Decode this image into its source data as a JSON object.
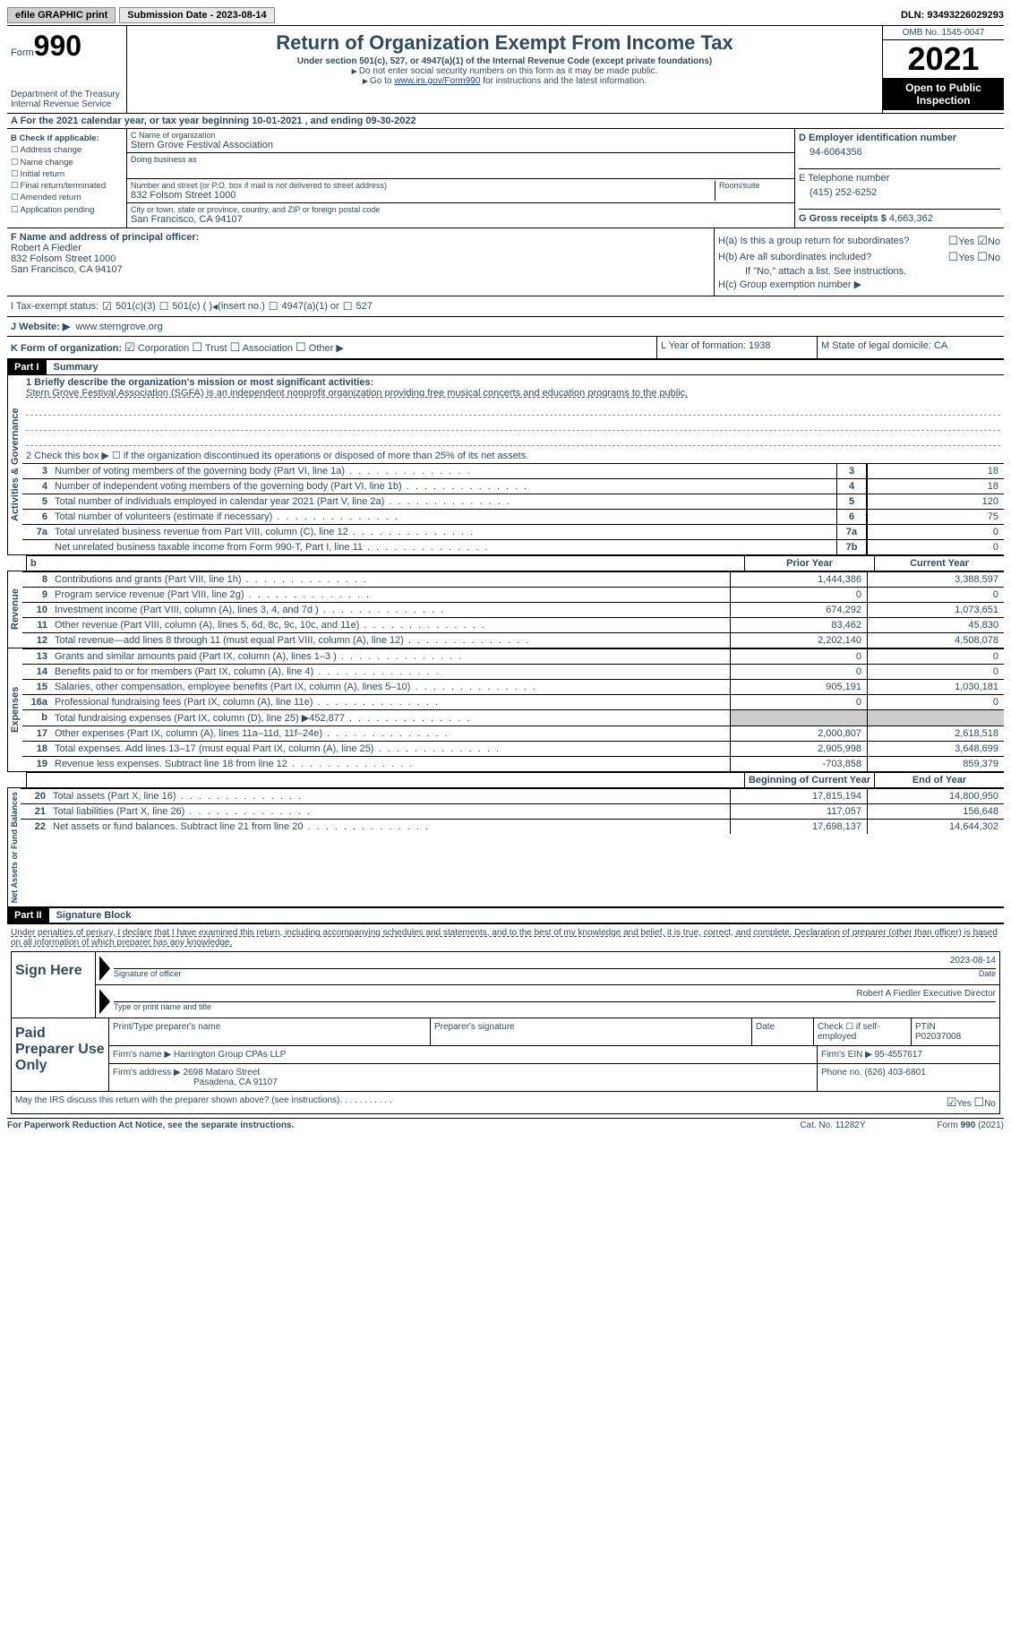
{
  "topbar": {
    "efile": "efile GRAPHIC print",
    "submission": "Submission Date - 2023-08-14",
    "dln": "DLN: 93493226029293"
  },
  "header": {
    "form_label": "Form",
    "form_number": "990",
    "dept": "Department of the Treasury\nInternal Revenue Service",
    "title": "Return of Organization Exempt From Income Tax",
    "subtitle": "Under section 501(c), 527, or 4947(a)(1) of the Internal Revenue Code (except private foundations)",
    "warn1": "Do not enter social security numbers on this form as it may be made public.",
    "warn2_pre": "Go to ",
    "warn2_link": "www.irs.gov/Form990",
    "warn2_post": " for instructions and the latest information.",
    "omb": "OMB No. 1545-0047",
    "year": "2021",
    "inspect": "Open to Public Inspection"
  },
  "row_a": "A For the 2021 calendar year, or tax year beginning 10-01-2021    , and ending 09-30-2022",
  "col_b": {
    "title": "B Check if applicable:",
    "items": [
      "Address change",
      "Name change",
      "Initial return",
      "Final return/terminated",
      "Amended return",
      "Application pending"
    ]
  },
  "col_c": {
    "name_lbl": "C Name of organization",
    "name": "Stern Grove Festival Association",
    "dba_lbl": "Doing business as",
    "addr_lbl": "Number and street (or P.O. box if mail is not delivered to street address)",
    "room_lbl": "Room/suite",
    "addr": "832 Folsom Street 1000",
    "city_lbl": "City or town, state or province, country, and ZIP or foreign postal code",
    "city": "San Francisco, CA  94107"
  },
  "col_d": {
    "ein_lbl": "D Employer identification number",
    "ein": "94-6064356",
    "tel_lbl": "E Telephone number",
    "tel": "(415) 252-6252",
    "gross_lbl": "G Gross receipts $",
    "gross": "4,663,362"
  },
  "col_f": {
    "lbl": "F Name and address of principal officer:",
    "name": "Robert A Fiedler",
    "addr1": "832 Folsom Street 1000",
    "addr2": "San Francisco, CA  94107"
  },
  "col_h": {
    "ha": "H(a)  Is this a group return for subordinates?",
    "hb": "H(b)  Are all subordinates included?",
    "note": "If \"No,\" attach a list. See instructions.",
    "hc": "H(c)  Group exemption number ▶"
  },
  "row_i": {
    "lbl": "I   Tax-exempt status:",
    "opts": [
      "501(c)(3)",
      "501(c) (  ) ",
      "(insert no.)",
      "4947(a)(1) or",
      "527"
    ]
  },
  "row_j": {
    "lbl": "J   Website: ▶",
    "val": "www.sterngrove.org"
  },
  "row_k": {
    "lbl": "K Form of organization:",
    "opts": [
      "Corporation",
      "Trust",
      "Association",
      "Other ▶"
    ]
  },
  "row_l": "L Year of formation: 1938",
  "row_m": "M State of legal domicile: CA",
  "part1": {
    "hdr": "Part I",
    "title": "Summary"
  },
  "summary": {
    "q1_lbl": "1   Briefly describe the organization's mission or most significant activities:",
    "q1_val": "Stern Grove Festival Association (SGFA) is an independent nonprofit organization providing free musical concerts and education programs to the public.",
    "q2": "2    Check this box ▶ ☐  if the organization discontinued its operations or disposed of more than 25% of its net assets.",
    "rows_a": [
      {
        "n": "3",
        "t": "Number of voting members of the governing body (Part VI, line 1a)",
        "nb": "3",
        "v": "18"
      },
      {
        "n": "4",
        "t": "Number of independent voting members of the governing body (Part VI, line 1b)",
        "nb": "4",
        "v": "18"
      },
      {
        "n": "5",
        "t": "Total number of individuals employed in calendar year 2021 (Part V, line 2a)",
        "nb": "5",
        "v": "120"
      },
      {
        "n": "6",
        "t": "Total number of volunteers (estimate if necessary)",
        "nb": "6",
        "v": "75"
      },
      {
        "n": "7a",
        "t": "Total unrelated business revenue from Part VIII, column (C), line 12",
        "nb": "7a",
        "v": "0"
      },
      {
        "n": "",
        "t": "Net unrelated business taxable income from Form 990-T, Part I, line 11",
        "nb": "7b",
        "v": "0"
      }
    ],
    "colhdr": {
      "b": "b",
      "py": "Prior Year",
      "cy": "Current Year"
    },
    "rows_r": [
      {
        "n": "8",
        "t": "Contributions and grants (Part VIII, line 1h)",
        "py": "1,444,386",
        "cy": "3,388,597"
      },
      {
        "n": "9",
        "t": "Program service revenue (Part VIII, line 2g)",
        "py": "0",
        "cy": "0"
      },
      {
        "n": "10",
        "t": "Investment income (Part VIII, column (A), lines 3, 4, and 7d )",
        "py": "674,292",
        "cy": "1,073,651"
      },
      {
        "n": "11",
        "t": "Other revenue (Part VIII, column (A), lines 5, 6d, 8c, 9c, 10c, and 11e)",
        "py": "83,462",
        "cy": "45,830"
      },
      {
        "n": "12",
        "t": "Total revenue—add lines 8 through 11 (must equal Part VIII, column (A), line 12)",
        "py": "2,202,140",
        "cy": "4,508,078"
      }
    ],
    "rows_e": [
      {
        "n": "13",
        "t": "Grants and similar amounts paid (Part IX, column (A), lines 1–3 )",
        "py": "0",
        "cy": "0"
      },
      {
        "n": "14",
        "t": "Benefits paid to or for members (Part IX, column (A), line 4)",
        "py": "0",
        "cy": "0"
      },
      {
        "n": "15",
        "t": "Salaries, other compensation, employee benefits (Part IX, column (A), lines 5–10)",
        "py": "905,191",
        "cy": "1,030,181"
      },
      {
        "n": "16a",
        "t": "Professional fundraising fees (Part IX, column (A), line 11e)",
        "py": "0",
        "cy": "0"
      },
      {
        "n": "b",
        "t": "Total fundraising expenses (Part IX, column (D), line 25) ▶452,877",
        "py": "grey",
        "cy": "grey"
      },
      {
        "n": "17",
        "t": "Other expenses (Part IX, column (A), lines 11a–11d, 11f–24e)",
        "py": "2,000,807",
        "cy": "2,618,518"
      },
      {
        "n": "18",
        "t": "Total expenses. Add lines 13–17 (must equal Part IX, column (A), line 25)",
        "py": "2,905,998",
        "cy": "3,648,699"
      },
      {
        "n": "19",
        "t": "Revenue less expenses. Subtract line 18 from line 12",
        "py": "-703,858",
        "cy": "859,379"
      }
    ],
    "colhdr2": {
      "py": "Beginning of Current Year",
      "cy": "End of Year"
    },
    "rows_n": [
      {
        "n": "20",
        "t": "Total assets (Part X, line 16)",
        "py": "17,815,194",
        "cy": "14,800,950"
      },
      {
        "n": "21",
        "t": "Total liabilities (Part X, line 26)",
        "py": "117,057",
        "cy": "156,648"
      },
      {
        "n": "22",
        "t": "Net assets or fund balances. Subtract line 21 from line 20",
        "py": "17,698,137",
        "cy": "14,644,302"
      }
    ],
    "vlabels": {
      "a": "Activities & Governance",
      "r": "Revenue",
      "e": "Expenses",
      "n": "Net Assets or Fund Balances"
    }
  },
  "part2": {
    "hdr": "Part II",
    "title": "Signature Block"
  },
  "sig": {
    "decl": "Under penalties of perjury, I declare that I have examined this return, including accompanying schedules and statements, and to the best of my knowledge and belief, it is true, correct, and complete. Declaration of preparer (other than officer) is based on all information of which preparer has any knowledge.",
    "sign_here": "Sign Here",
    "date": "2023-08-14",
    "sig_lbl": "Signature of officer",
    "date_lbl": "Date",
    "name": "Robert A Fiedler  Executive Director",
    "name_lbl": "Type or print name and title",
    "paid": "Paid Preparer Use Only",
    "pname_lbl": "Print/Type preparer's name",
    "psig_lbl": "Preparer's signature",
    "pdate_lbl": "Date",
    "check_lbl": "Check ☐ if self-employed",
    "ptin_lbl": "PTIN",
    "ptin": "P02037008",
    "firm_name_lbl": "Firm's name    ▶",
    "firm_name": "Harrington Group CPAs LLP",
    "firm_ein_lbl": "Firm's EIN ▶",
    "firm_ein": "95-4557617",
    "firm_addr_lbl": "Firm's address ▶",
    "firm_addr1": "2698 Mataro Street",
    "firm_addr2": "Pasadena, CA  91107",
    "phone_lbl": "Phone no.",
    "phone": "(626) 403-6801",
    "discuss": "May the IRS discuss this return with the preparer shown above? (see instructions)"
  },
  "footer": {
    "pra": "For Paperwork Reduction Act Notice, see the separate instructions.",
    "cat": "Cat. No. 11282Y",
    "form": "Form 990 (2021)"
  }
}
